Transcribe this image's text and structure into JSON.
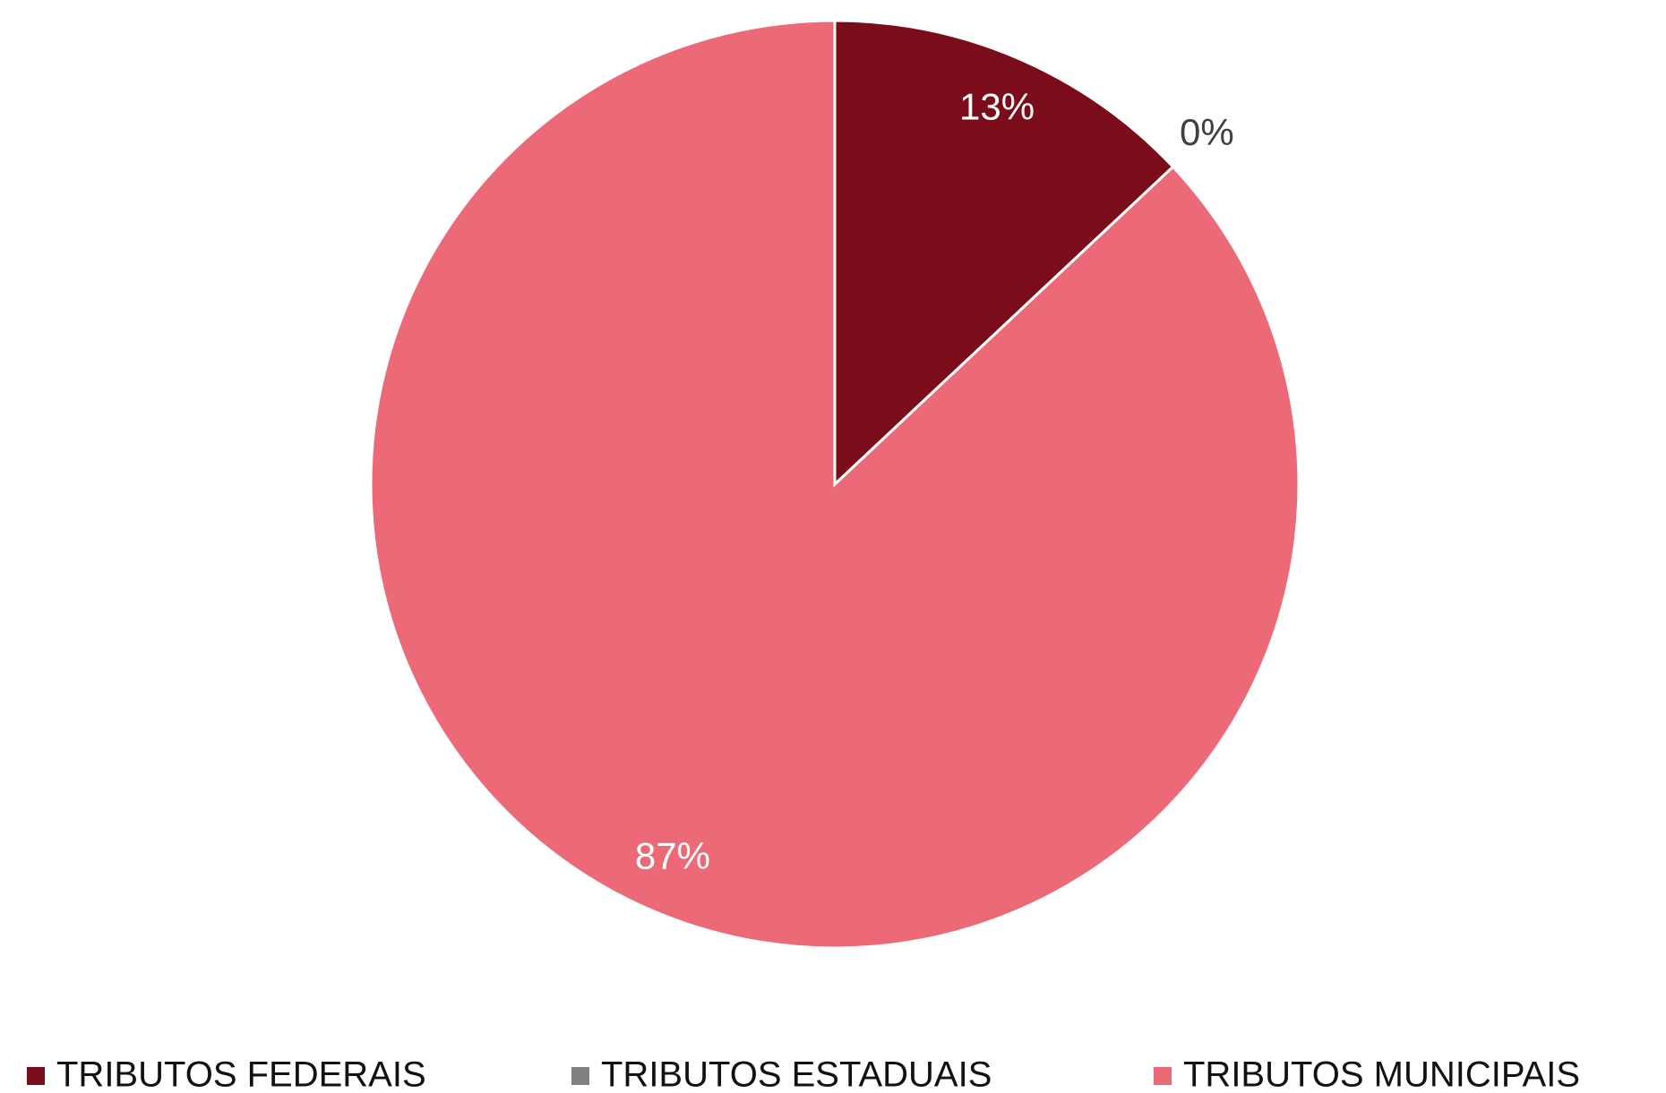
{
  "chart_data": {
    "type": "pie",
    "categories": [
      "TRIBUTOS FEDERAIS",
      "TRIBUTOS ESTADUAIS",
      "TRIBUTOS MUNICIPAIS"
    ],
    "values": [
      13,
      0,
      87
    ],
    "value_labels": [
      "13%",
      "0%",
      "87%"
    ],
    "colors": [
      "#7b0d1a",
      "#808080",
      "#ec6a77"
    ],
    "legend": "bottom"
  }
}
